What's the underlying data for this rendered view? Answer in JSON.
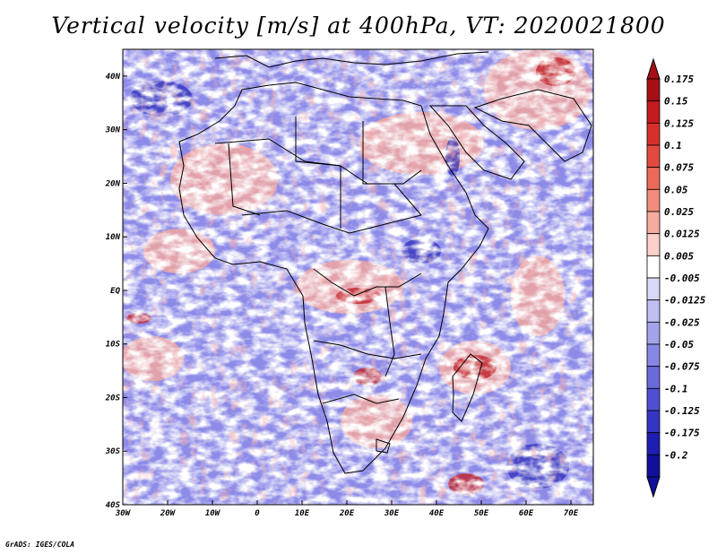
{
  "title": "Vertical velocity [m/s] at 400hPa, VT: 2020021800",
  "footer": "GrADS: IGES/COLA",
  "map": {
    "lon_labels": [
      "30W",
      "20W",
      "10W",
      "0",
      "10E",
      "20E",
      "30E",
      "40E",
      "50E",
      "60E",
      "70E"
    ],
    "lat_labels": [
      "40N",
      "30N",
      "20N",
      "10N",
      "EQ",
      "10S",
      "20S",
      "30S",
      "40S"
    ],
    "lon_range": [
      -30,
      75
    ],
    "lat_range": [
      -40,
      45
    ]
  },
  "colorbar": {
    "labels": [
      "0.175",
      "0.15",
      "0.125",
      "0.1",
      "0.075",
      "0.05",
      "0.025",
      "0.0125",
      "0.005",
      "-0.005",
      "-0.0125",
      "-0.025",
      "-0.05",
      "-0.075",
      "-0.1",
      "-0.125",
      "-0.175",
      "-0.2"
    ],
    "colors": [
      "#a50f15",
      "#c41b21",
      "#d7302a",
      "#e34a3f",
      "#ec6a5a",
      "#f28c7d",
      "#f6ab9f",
      "#fad0c8",
      "#ffffff",
      "#d9d9f7",
      "#bfbff2",
      "#a3a3ec",
      "#8787e5",
      "#6a6adb",
      "#4f4fd1",
      "#3535c4",
      "#1e1eb3",
      "#10109a"
    ]
  }
}
